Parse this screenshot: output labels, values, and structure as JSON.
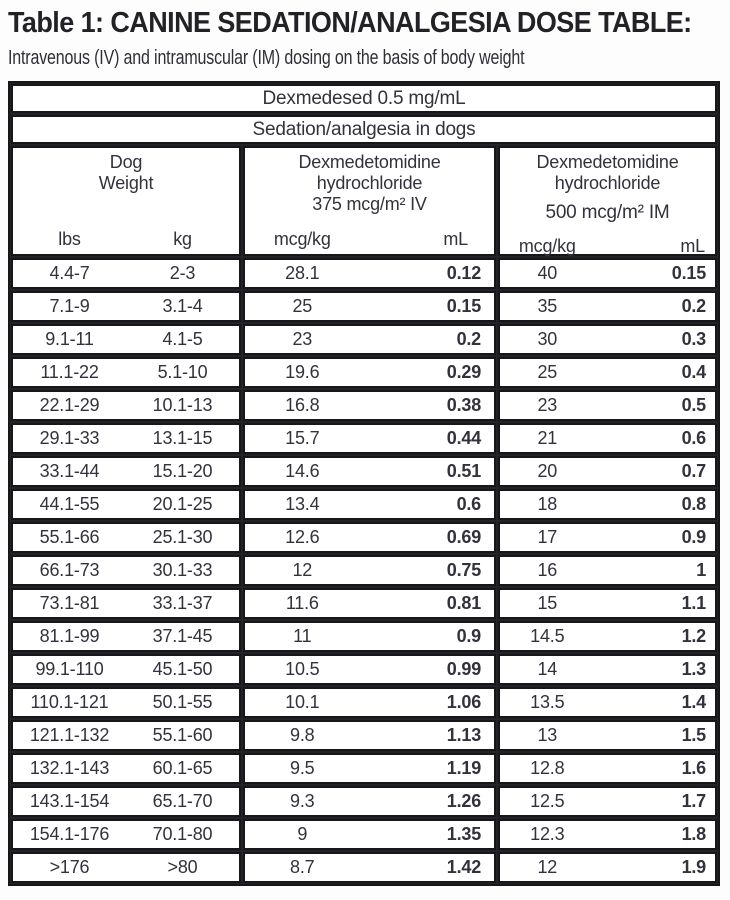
{
  "page": {
    "title": "Table 1: CANINE SEDATION/ANALGESIA DOSE TABLE:",
    "subtitle": "Intravenous (IV) and intramuscular (IM) dosing on the basis of body weight"
  },
  "colors": {
    "border": "#17171a",
    "text": "#32323c",
    "background": "#ffffff"
  },
  "table": {
    "banner_product": "Dexmedesed 0.5 mg/mL",
    "banner_indication": "Sedation/analgesia in dogs",
    "groups": [
      {
        "title_lines": [
          "Dog",
          "Weight"
        ],
        "col1": "lbs",
        "col2": "kg"
      },
      {
        "title_lines": [
          "Dexmedetomidine",
          "hydrochloride",
          "375 mcg/m² IV"
        ],
        "col1": "mcg/kg",
        "col2": "mL"
      },
      {
        "title_lines": [
          "Dexmedetomidine",
          "hydrochloride",
          "500 mcg/m² IM"
        ],
        "col1": "mcg/kg",
        "col2": "mL"
      }
    ],
    "rows": [
      [
        "4.4-7",
        "2-3",
        "28.1",
        "0.12",
        "40",
        "0.15"
      ],
      [
        "7.1-9",
        "3.1-4",
        "25",
        "0.15",
        "35",
        "0.2"
      ],
      [
        "9.1-11",
        "4.1-5",
        "23",
        "0.2",
        "30",
        "0.3"
      ],
      [
        "11.1-22",
        "5.1-10",
        "19.6",
        "0.29",
        "25",
        "0.4"
      ],
      [
        "22.1-29",
        "10.1-13",
        "16.8",
        "0.38",
        "23",
        "0.5"
      ],
      [
        "29.1-33",
        "13.1-15",
        "15.7",
        "0.44",
        "21",
        "0.6"
      ],
      [
        "33.1-44",
        "15.1-20",
        "14.6",
        "0.51",
        "20",
        "0.7"
      ],
      [
        "44.1-55",
        "20.1-25",
        "13.4",
        "0.6",
        "18",
        "0.8"
      ],
      [
        "55.1-66",
        "25.1-30",
        "12.6",
        "0.69",
        "17",
        "0.9"
      ],
      [
        "66.1-73",
        "30.1-33",
        "12",
        "0.75",
        "16",
        "1"
      ],
      [
        "73.1-81",
        "33.1-37",
        "11.6",
        "0.81",
        "15",
        "1.1"
      ],
      [
        "81.1-99",
        "37.1-45",
        "11",
        "0.9",
        "14.5",
        "1.2"
      ],
      [
        "99.1-110",
        "45.1-50",
        "10.5",
        "0.99",
        "14",
        "1.3"
      ],
      [
        "110.1-121",
        "50.1-55",
        "10.1",
        "1.06",
        "13.5",
        "1.4"
      ],
      [
        "121.1-132",
        "55.1-60",
        "9.8",
        "1.13",
        "13",
        "1.5"
      ],
      [
        "132.1-143",
        "60.1-65",
        "9.5",
        "1.19",
        "12.8",
        "1.6"
      ],
      [
        "143.1-154",
        "65.1-70",
        "9.3",
        "1.26",
        "12.5",
        "1.7"
      ],
      [
        "154.1-176",
        "70.1-80",
        "9",
        "1.35",
        "12.3",
        "1.8"
      ],
      [
        ">176",
        ">80",
        "8.7",
        "1.42",
        "12",
        "1.9"
      ]
    ]
  }
}
